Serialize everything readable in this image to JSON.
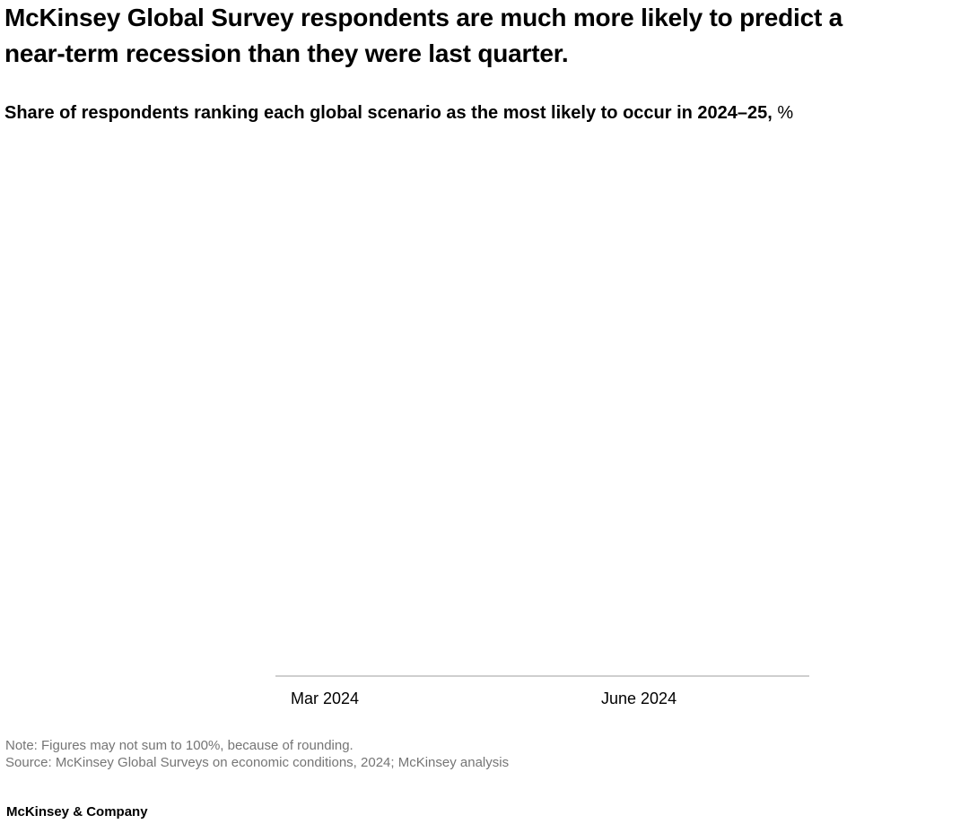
{
  "header": {
    "title_lines": [
      "McKinsey Global Survey respondents are much more likely to predict a",
      "near-term recession than they were last quarter."
    ],
    "subtitle": "Share of respondents ranking each global scenario as the most likely to occur in 2024–25,",
    "subtitle_unit": "%"
  },
  "chart_data": {
    "type": "bar",
    "title": "McKinsey Global Survey respondents are much more likely to predict a near-term recession than they were last quarter.",
    "subtitle": "Share of respondents ranking each global scenario as the most likely to occur in 2024–25, %",
    "categories": [
      "Mar 2024",
      "June 2024"
    ],
    "series": [],
    "xlabel": "",
    "ylabel": "",
    "plot_area_empty": true,
    "axis_line_color": "#cfcfcf",
    "legend_position": "none",
    "grid": false
  },
  "footnotes": {
    "note": "Note: Figures may not sum to 100%, because of rounding.",
    "source": "Source: McKinsey Global Surveys on economic conditions, 2024; McKinsey analysis"
  },
  "footer": {
    "brand": "McKinsey & Company"
  },
  "colors": {
    "text": "#000000",
    "footnote_gray": "#757575",
    "axis_line": "#cfcfcf",
    "background": "#ffffff"
  }
}
